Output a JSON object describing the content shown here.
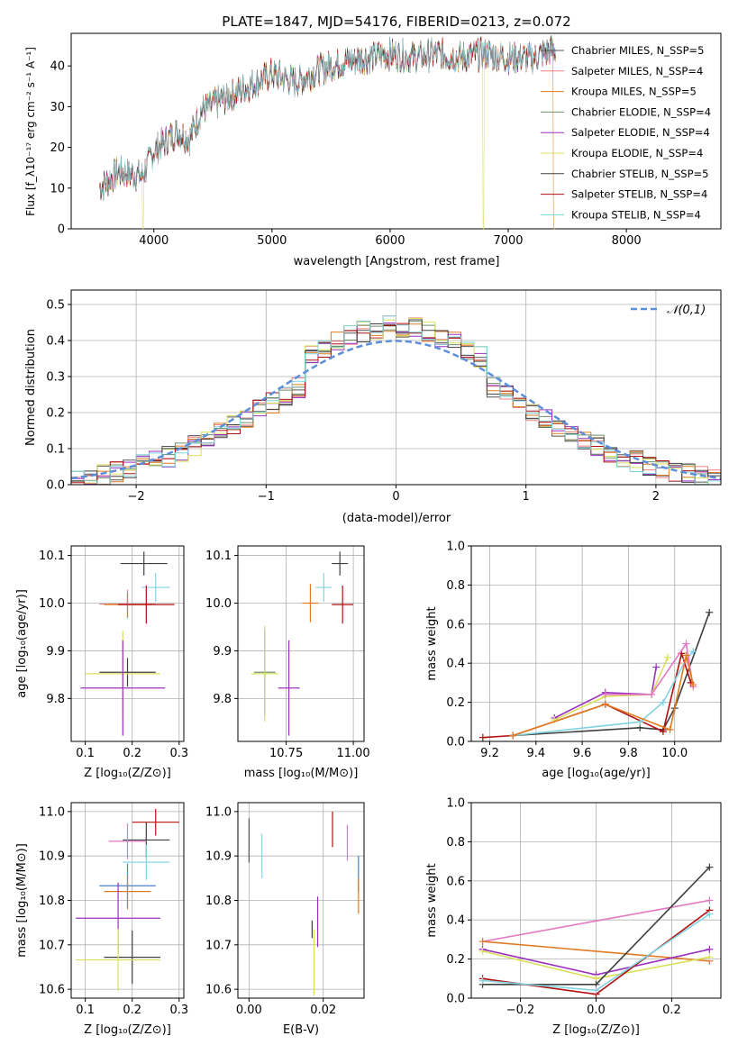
{
  "figure_title": "PLATE=1847, MJD=54176, FIBERID=0213, z=0.072",
  "colors": {
    "c0": "#555555",
    "c1": "#f08080",
    "c2": "#e07b22",
    "c3": "#6e8f6e",
    "c4": "#9b30c0",
    "c5": "#d9e05a",
    "c6": "#404040",
    "c7": "#b01010",
    "c8": "#80d4e0",
    "gauss": "#5b8fd9",
    "pink": "#e377c2",
    "blue": "#4e7fc8"
  },
  "chart_data": [
    {
      "type": "line",
      "xlabel": "wavelength [Angstrom, rest frame]",
      "ylabel": "Flux [f_λ10⁻¹⁷ erg cm⁻² s⁻¹ A⁻¹]",
      "xlim": [
        3300,
        8800
      ],
      "ylim": [
        0,
        48
      ],
      "xticks": [
        4000,
        5000,
        6000,
        7000,
        8000
      ],
      "yticks": [
        0,
        10,
        20,
        30,
        40
      ],
      "grid": false,
      "legend_position": "top-right",
      "continuum": {
        "x": [
          3540,
          3700,
          3900,
          4000,
          4200,
          4300,
          4400,
          4600,
          4800,
          5000,
          5200,
          5400,
          5600,
          5800,
          6000,
          6200,
          6400,
          6600,
          6800,
          7000,
          7200,
          7400
        ],
        "y": [
          10,
          14,
          13,
          19,
          24,
          22,
          29,
          32,
          35,
          38,
          36,
          39,
          41,
          42,
          43,
          42,
          43,
          42,
          43,
          42,
          42,
          44
        ]
      },
      "series": [
        {
          "name": "Chabrier MILES, N_SSP=5",
          "color": "c0"
        },
        {
          "name": "Salpeter MILES, N_SSP=4",
          "color": "c1"
        },
        {
          "name": "Kroupa MILES, N_SSP=5",
          "color": "c2"
        },
        {
          "name": "Chabrier ELODIE, N_SSP=4",
          "color": "c3"
        },
        {
          "name": "Salpeter ELODIE, N_SSP=4",
          "color": "c4"
        },
        {
          "name": "Kroupa ELODIE, N_SSP=4",
          "color": "c5"
        },
        {
          "name": "Chabrier STELIB, N_SSP=5",
          "color": "c6"
        },
        {
          "name": "Salpeter STELIB, N_SSP=4",
          "color": "c7"
        },
        {
          "name": "Kroupa STELIB, N_SSP=4",
          "color": "c8"
        }
      ]
    },
    {
      "type": "histogram",
      "xlabel": "(data-model)/error",
      "ylabel": "Normed distribution",
      "xlim": [
        -2.5,
        2.5
      ],
      "ylim": [
        0,
        0.54
      ],
      "xticks": [
        -2,
        -1,
        0,
        1,
        2
      ],
      "yticks": [
        0.0,
        0.1,
        0.2,
        0.3,
        0.4,
        0.5
      ],
      "grid": true,
      "legend_position": "top-right",
      "legend": "𝒩(0,1)",
      "bin_width": 0.1,
      "series_colors": [
        "c0",
        "c1",
        "c2",
        "c3",
        "c4",
        "c5",
        "c6",
        "c7",
        "c8"
      ]
    },
    {
      "type": "errorbar",
      "xlabel": "Z [log₁₀(Z/Z⊙)]",
      "ylabel": "age  [log₁₀(age/yr)]",
      "xlim": [
        0.07,
        0.31
      ],
      "ylim": [
        9.71,
        10.12
      ],
      "xticks": [
        0.1,
        0.2,
        0.3
      ],
      "yticks": [
        9.8,
        9.9,
        10.0,
        10.1
      ],
      "grid": true,
      "points": [
        {
          "x": 0.225,
          "y": 10.083,
          "xerr": 0.05,
          "yerr": 0.025,
          "color": "c6"
        },
        {
          "x": 0.25,
          "y": 10.033,
          "xerr": 0.03,
          "yerr": 0.03,
          "color": "c8"
        },
        {
          "x": 0.19,
          "y": 9.998,
          "xerr": 0.06,
          "yerr": 0.03,
          "color": "c1"
        },
        {
          "x": 0.19,
          "y": 9.997,
          "xerr": 0.05,
          "yerr": 0.025,
          "color": "c2"
        },
        {
          "x": 0.23,
          "y": 9.997,
          "xerr": 0.06,
          "yerr": 0.04,
          "color": "c7"
        },
        {
          "x": 0.19,
          "y": 9.855,
          "xerr": 0.06,
          "yerr": 0.03,
          "color": "c6"
        },
        {
          "x": 0.18,
          "y": 9.852,
          "xerr": 0.08,
          "yerr": 0.09,
          "color": "c5"
        },
        {
          "x": 0.18,
          "y": 9.822,
          "xerr": 0.09,
          "yerr": 0.1,
          "color": "c4"
        }
      ]
    },
    {
      "type": "errorbar",
      "xlabel": "mass [log₁₀(M/M⊙)]",
      "xlim": [
        10.57,
        11.04
      ],
      "ylim": [
        9.71,
        10.12
      ],
      "xticks": [
        10.75,
        11.0
      ],
      "yticks": [
        9.8,
        9.9,
        10.0,
        10.1
      ],
      "grid": true,
      "points": [
        {
          "x": 10.95,
          "y": 10.083,
          "xerr": 0.03,
          "yerr": 0.025,
          "color": "c6"
        },
        {
          "x": 10.89,
          "y": 10.033,
          "xerr": 0.03,
          "yerr": 0.03,
          "color": "c8"
        },
        {
          "x": 10.84,
          "y": 10.0,
          "xerr": 0.03,
          "yerr": 0.04,
          "color": "c2"
        },
        {
          "x": 10.96,
          "y": 9.997,
          "xerr": 0.04,
          "yerr": 0.04,
          "color": "c7"
        },
        {
          "x": 10.67,
          "y": 9.855,
          "xerr": 0.04,
          "yerr": 0.09,
          "color": "c3"
        },
        {
          "x": 10.67,
          "y": 9.852,
          "xerr": 0.05,
          "yerr": 0.1,
          "color": "c5"
        },
        {
          "x": 10.76,
          "y": 9.822,
          "xerr": 0.04,
          "yerr": 0.1,
          "color": "c4"
        }
      ]
    },
    {
      "type": "line",
      "xlabel": "age  [log₁₀(age/yr)]",
      "ylabel": "mass weight",
      "xlim": [
        9.12,
        10.2
      ],
      "ylim": [
        0,
        1
      ],
      "xticks": [
        9.2,
        9.4,
        9.6,
        9.8,
        10.0
      ],
      "yticks": [
        0.0,
        0.2,
        0.4,
        0.6,
        0.8,
        1.0
      ],
      "grid": true,
      "series": [
        {
          "color": "c6",
          "x": [
            9.3,
            9.85,
            9.95,
            10.0,
            10.15
          ],
          "y": [
            0.03,
            0.07,
            0.06,
            0.17,
            0.66
          ]
        },
        {
          "color": "c7",
          "x": [
            9.17,
            9.3,
            9.7,
            9.95,
            10.03,
            10.07
          ],
          "y": [
            0.02,
            0.03,
            0.19,
            0.05,
            0.45,
            0.3
          ]
        },
        {
          "color": "c8",
          "x": [
            9.3,
            9.85,
            9.95,
            10.05,
            10.08
          ],
          "y": [
            0.03,
            0.1,
            0.2,
            0.42,
            0.46
          ]
        },
        {
          "color": "c4",
          "x": [
            9.48,
            9.7,
            9.9,
            9.92
          ],
          "y": [
            0.12,
            0.25,
            0.24,
            0.38
          ]
        },
        {
          "color": "c5",
          "x": [
            9.48,
            9.7,
            9.9,
            9.97
          ],
          "y": [
            0.11,
            0.23,
            0.24,
            0.43
          ]
        },
        {
          "color": "pink",
          "x": [
            9.7,
            9.9,
            10.05,
            10.08
          ],
          "y": [
            0.24,
            0.24,
            0.5,
            0.28
          ]
        },
        {
          "color": "c2",
          "x": [
            9.3,
            9.7,
            9.98,
            10.05,
            10.08
          ],
          "y": [
            0.03,
            0.19,
            0.06,
            0.44,
            0.29
          ]
        }
      ]
    },
    {
      "type": "errorbar",
      "xlabel": "Z [log₁₀(Z/Z⊙)]",
      "ylabel": "mass [log₁₀(M/M⊙)]",
      "xlim": [
        0.07,
        0.31
      ],
      "ylim": [
        10.58,
        11.02
      ],
      "xticks": [
        0.1,
        0.2,
        0.3
      ],
      "yticks": [
        10.6,
        10.7,
        10.8,
        10.9,
        11.0
      ],
      "grid": true,
      "points": [
        {
          "x": 0.25,
          "y": 10.976,
          "xerr": 0.05,
          "yerr": 0.03,
          "color": "c7"
        },
        {
          "x": 0.23,
          "y": 10.936,
          "xerr": 0.05,
          "yerr": 0.04,
          "color": "c6"
        },
        {
          "x": 0.19,
          "y": 10.933,
          "xerr": 0.04,
          "yerr": 0.04,
          "color": "pink"
        },
        {
          "x": 0.23,
          "y": 10.886,
          "xerr": 0.05,
          "yerr": 0.04,
          "color": "c8"
        },
        {
          "x": 0.19,
          "y": 10.833,
          "xerr": 0.06,
          "yerr": 0.05,
          "color": "blue"
        },
        {
          "x": 0.19,
          "y": 10.82,
          "xerr": 0.05,
          "yerr": 0.04,
          "color": "c2"
        },
        {
          "x": 0.17,
          "y": 10.76,
          "xerr": 0.09,
          "yerr": 0.08,
          "color": "c4"
        },
        {
          "x": 0.2,
          "y": 10.672,
          "xerr": 0.06,
          "yerr": 0.06,
          "color": "c6"
        },
        {
          "x": 0.17,
          "y": 10.666,
          "xerr": 0.09,
          "yerr": 0.07,
          "color": "c5"
        }
      ]
    },
    {
      "type": "errorbar",
      "xlabel": "E(B-V)",
      "xlim": [
        -0.003,
        0.031
      ],
      "ylim": [
        10.58,
        11.02
      ],
      "xticks": [
        0.0,
        0.02
      ],
      "yticks": [
        10.6,
        10.7,
        10.8,
        10.9,
        11.0
      ],
      "grid": true,
      "points": [
        {
          "x": 0.0,
          "y": 10.935,
          "yerr": 0.05,
          "color": "c0"
        },
        {
          "x": 0.0035,
          "y": 10.9,
          "yerr": 0.05,
          "color": "c8"
        },
        {
          "x": 0.017,
          "y": 10.735,
          "yerr": 0.02,
          "color": "c6"
        },
        {
          "x": 0.0175,
          "y": 10.66,
          "yerr": 0.075,
          "color": "c5"
        },
        {
          "x": 0.0185,
          "y": 10.752,
          "yerr": 0.057,
          "color": "c4"
        },
        {
          "x": 0.0225,
          "y": 10.96,
          "yerr": 0.04,
          "color": "c7"
        },
        {
          "x": 0.0265,
          "y": 10.93,
          "yerr": 0.04,
          "color": "pink"
        },
        {
          "x": 0.0295,
          "y": 10.86,
          "yerr": 0.04,
          "color": "blue"
        },
        {
          "x": 0.0295,
          "y": 10.81,
          "yerr": 0.04,
          "color": "c2"
        }
      ]
    },
    {
      "type": "line",
      "xlabel": "Z [log₁₀(Z/Z⊙)]",
      "ylabel": "mass weight",
      "xlim": [
        -0.33,
        0.33
      ],
      "ylim": [
        0,
        1
      ],
      "xticks": [
        -0.2,
        0.0,
        0.2
      ],
      "yticks": [
        0.0,
        0.2,
        0.4,
        0.6,
        0.8,
        1.0
      ],
      "grid": true,
      "series": [
        {
          "color": "pink",
          "x": [
            -0.3,
            0.3
          ],
          "y": [
            0.29,
            0.5
          ]
        },
        {
          "color": "c2",
          "x": [
            -0.3,
            0.3
          ],
          "y": [
            0.29,
            0.19
          ]
        },
        {
          "color": "c4",
          "x": [
            -0.3,
            0.0,
            0.3
          ],
          "y": [
            0.25,
            0.12,
            0.25
          ]
        },
        {
          "color": "c5",
          "x": [
            -0.3,
            0.0,
            0.3
          ],
          "y": [
            0.24,
            0.1,
            0.21
          ]
        },
        {
          "color": "c6",
          "x": [
            -0.3,
            0.0,
            0.3
          ],
          "y": [
            0.07,
            0.07,
            0.67
          ]
        },
        {
          "color": "c7",
          "x": [
            -0.3,
            0.0,
            0.3
          ],
          "y": [
            0.1,
            0.02,
            0.45
          ]
        },
        {
          "color": "c8",
          "x": [
            -0.3,
            0.0,
            0.3
          ],
          "y": [
            0.09,
            0.04,
            0.43
          ]
        }
      ]
    }
  ]
}
